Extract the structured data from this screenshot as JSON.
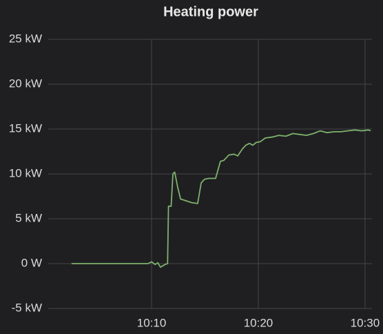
{
  "chart_data": {
    "type": "line",
    "title": "Heating power",
    "x": [
      "10:02:30",
      "10:09:40",
      "10:10:00",
      "10:10:20",
      "10:10:35",
      "10:10:50",
      "10:11:15",
      "10:11:30",
      "10:11:35",
      "10:11:50",
      "10:12:00",
      "10:12:10",
      "10:12:27",
      "10:12:43",
      "10:13:14",
      "10:13:45",
      "10:14:19",
      "10:14:39",
      "10:14:58",
      "10:15:21",
      "10:16:00",
      "10:16:27",
      "10:16:46",
      "10:17:14",
      "10:17:44",
      "10:18:04",
      "10:18:31",
      "10:18:50",
      "10:19:10",
      "10:19:29",
      "10:19:48",
      "10:20:12",
      "10:20:39",
      "10:21:17",
      "10:21:56",
      "10:22:35",
      "10:23:14",
      "10:23:52",
      "10:24:31",
      "10:25:10",
      "10:25:48",
      "10:26:27",
      "10:27:06",
      "10:27:44",
      "10:28:23",
      "10:29:02",
      "10:29:41",
      "10:30:19",
      "10:30:31"
    ],
    "values": [
      0,
      0,
      0.2,
      -0.1,
      0.1,
      -0.4,
      -0.1,
      0,
      6.4,
      6.4,
      10,
      10.2,
      8.5,
      7.2,
      7,
      6.8,
      6.7,
      9,
      9.4,
      9.5,
      9.5,
      11.4,
      11.5,
      12.1,
      12.2,
      12,
      12.8,
      13.2,
      13.4,
      13.2,
      13.5,
      13.6,
      14,
      14.1,
      14.3,
      14.2,
      14.5,
      14.4,
      14.3,
      14.5,
      14.8,
      14.6,
      14.7,
      14.7,
      14.8,
      14.9,
      14.8,
      14.9,
      14.8
    ],
    "color": "#7eb26d",
    "xlim": [
      "10:00:19",
      "10:30:39"
    ],
    "xticks": [
      "10:10",
      "10:20",
      "10:30"
    ],
    "ylim": [
      -5,
      25
    ],
    "yticks": [
      {
        "value": -5,
        "label": "-5 kW"
      },
      {
        "value": 0,
        "label": "0 W"
      },
      {
        "value": 5,
        "label": "5 kW"
      },
      {
        "value": 10,
        "label": "10 kW"
      },
      {
        "value": 15,
        "label": "15 kW"
      },
      {
        "value": 20,
        "label": "20 kW"
      },
      {
        "value": 25,
        "label": "25 kW"
      }
    ],
    "grid": true
  }
}
